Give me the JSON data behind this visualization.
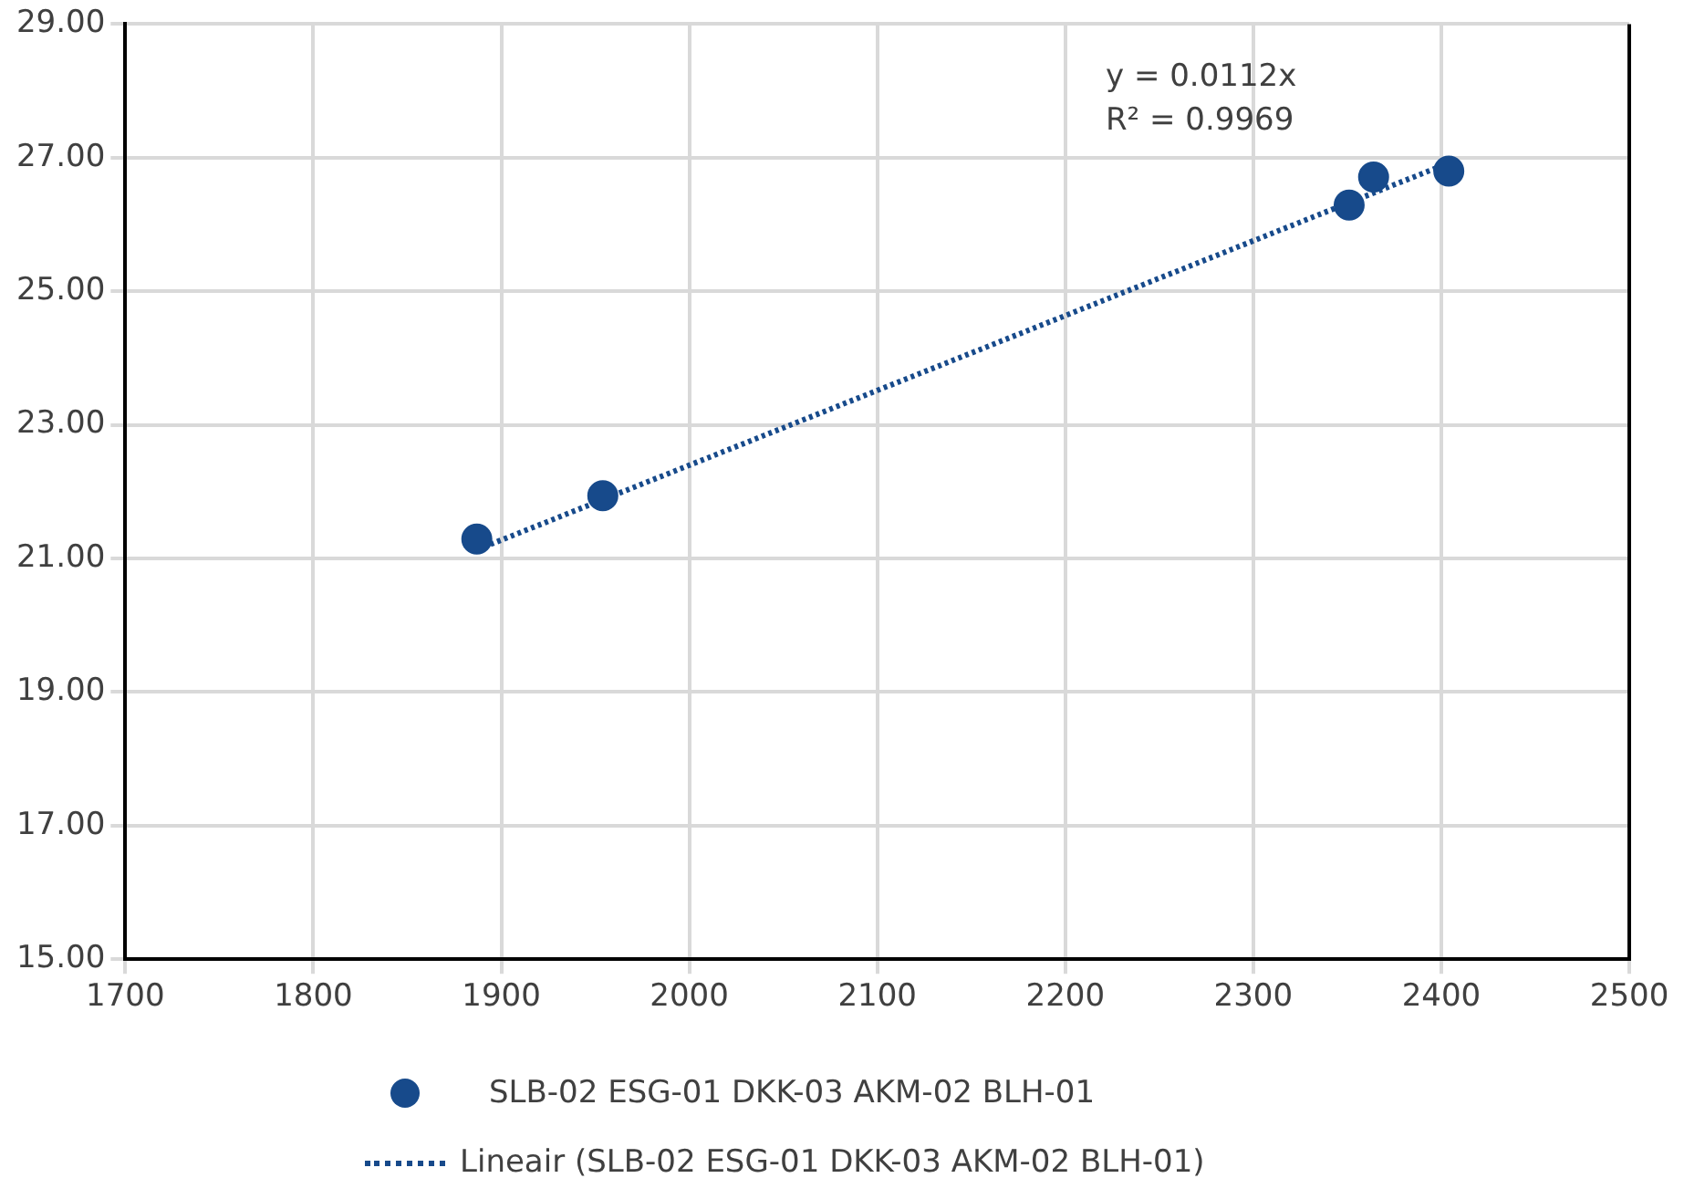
{
  "chart_data": {
    "type": "scatter",
    "annotations": [
      "y = 0.0112x",
      "R² = 0.9969"
    ],
    "series": [
      {
        "name": "SLB-02 ESG-01 DKK-03 AKM-02 BLH-01",
        "color": "#174a8b",
        "x": [
          1887,
          1954,
          2351,
          2364,
          2404
        ],
        "values": [
          21.29,
          21.94,
          26.29,
          26.71,
          26.8
        ]
      },
      {
        "name": "Lineair (SLB-02 ESG-01 DKK-03 AKM-02 BLH-01)",
        "type": "line",
        "line_style": "dotted",
        "marker": "none",
        "color": "#174a8b",
        "x": [
          1887,
          2404
        ],
        "values": [
          21.13,
          26.92
        ]
      }
    ],
    "xlim": [
      1700,
      2500
    ],
    "xticks": [
      1700,
      1800,
      1900,
      2000,
      2100,
      2200,
      2300,
      2400,
      2500
    ],
    "ylim": [
      15,
      29
    ],
    "yticks": [
      {
        "value": 15,
        "label": "15.00"
      },
      {
        "value": 17,
        "label": "17.00"
      },
      {
        "value": 19,
        "label": "19.00"
      },
      {
        "value": 21,
        "label": "21.00"
      },
      {
        "value": 23,
        "label": "23.00"
      },
      {
        "value": 25,
        "label": "25.00"
      },
      {
        "value": 27,
        "label": "27.00"
      },
      {
        "value": 29,
        "label": "29.00"
      }
    ],
    "grid": true,
    "legend": "bottom",
    "marker": "circle"
  }
}
